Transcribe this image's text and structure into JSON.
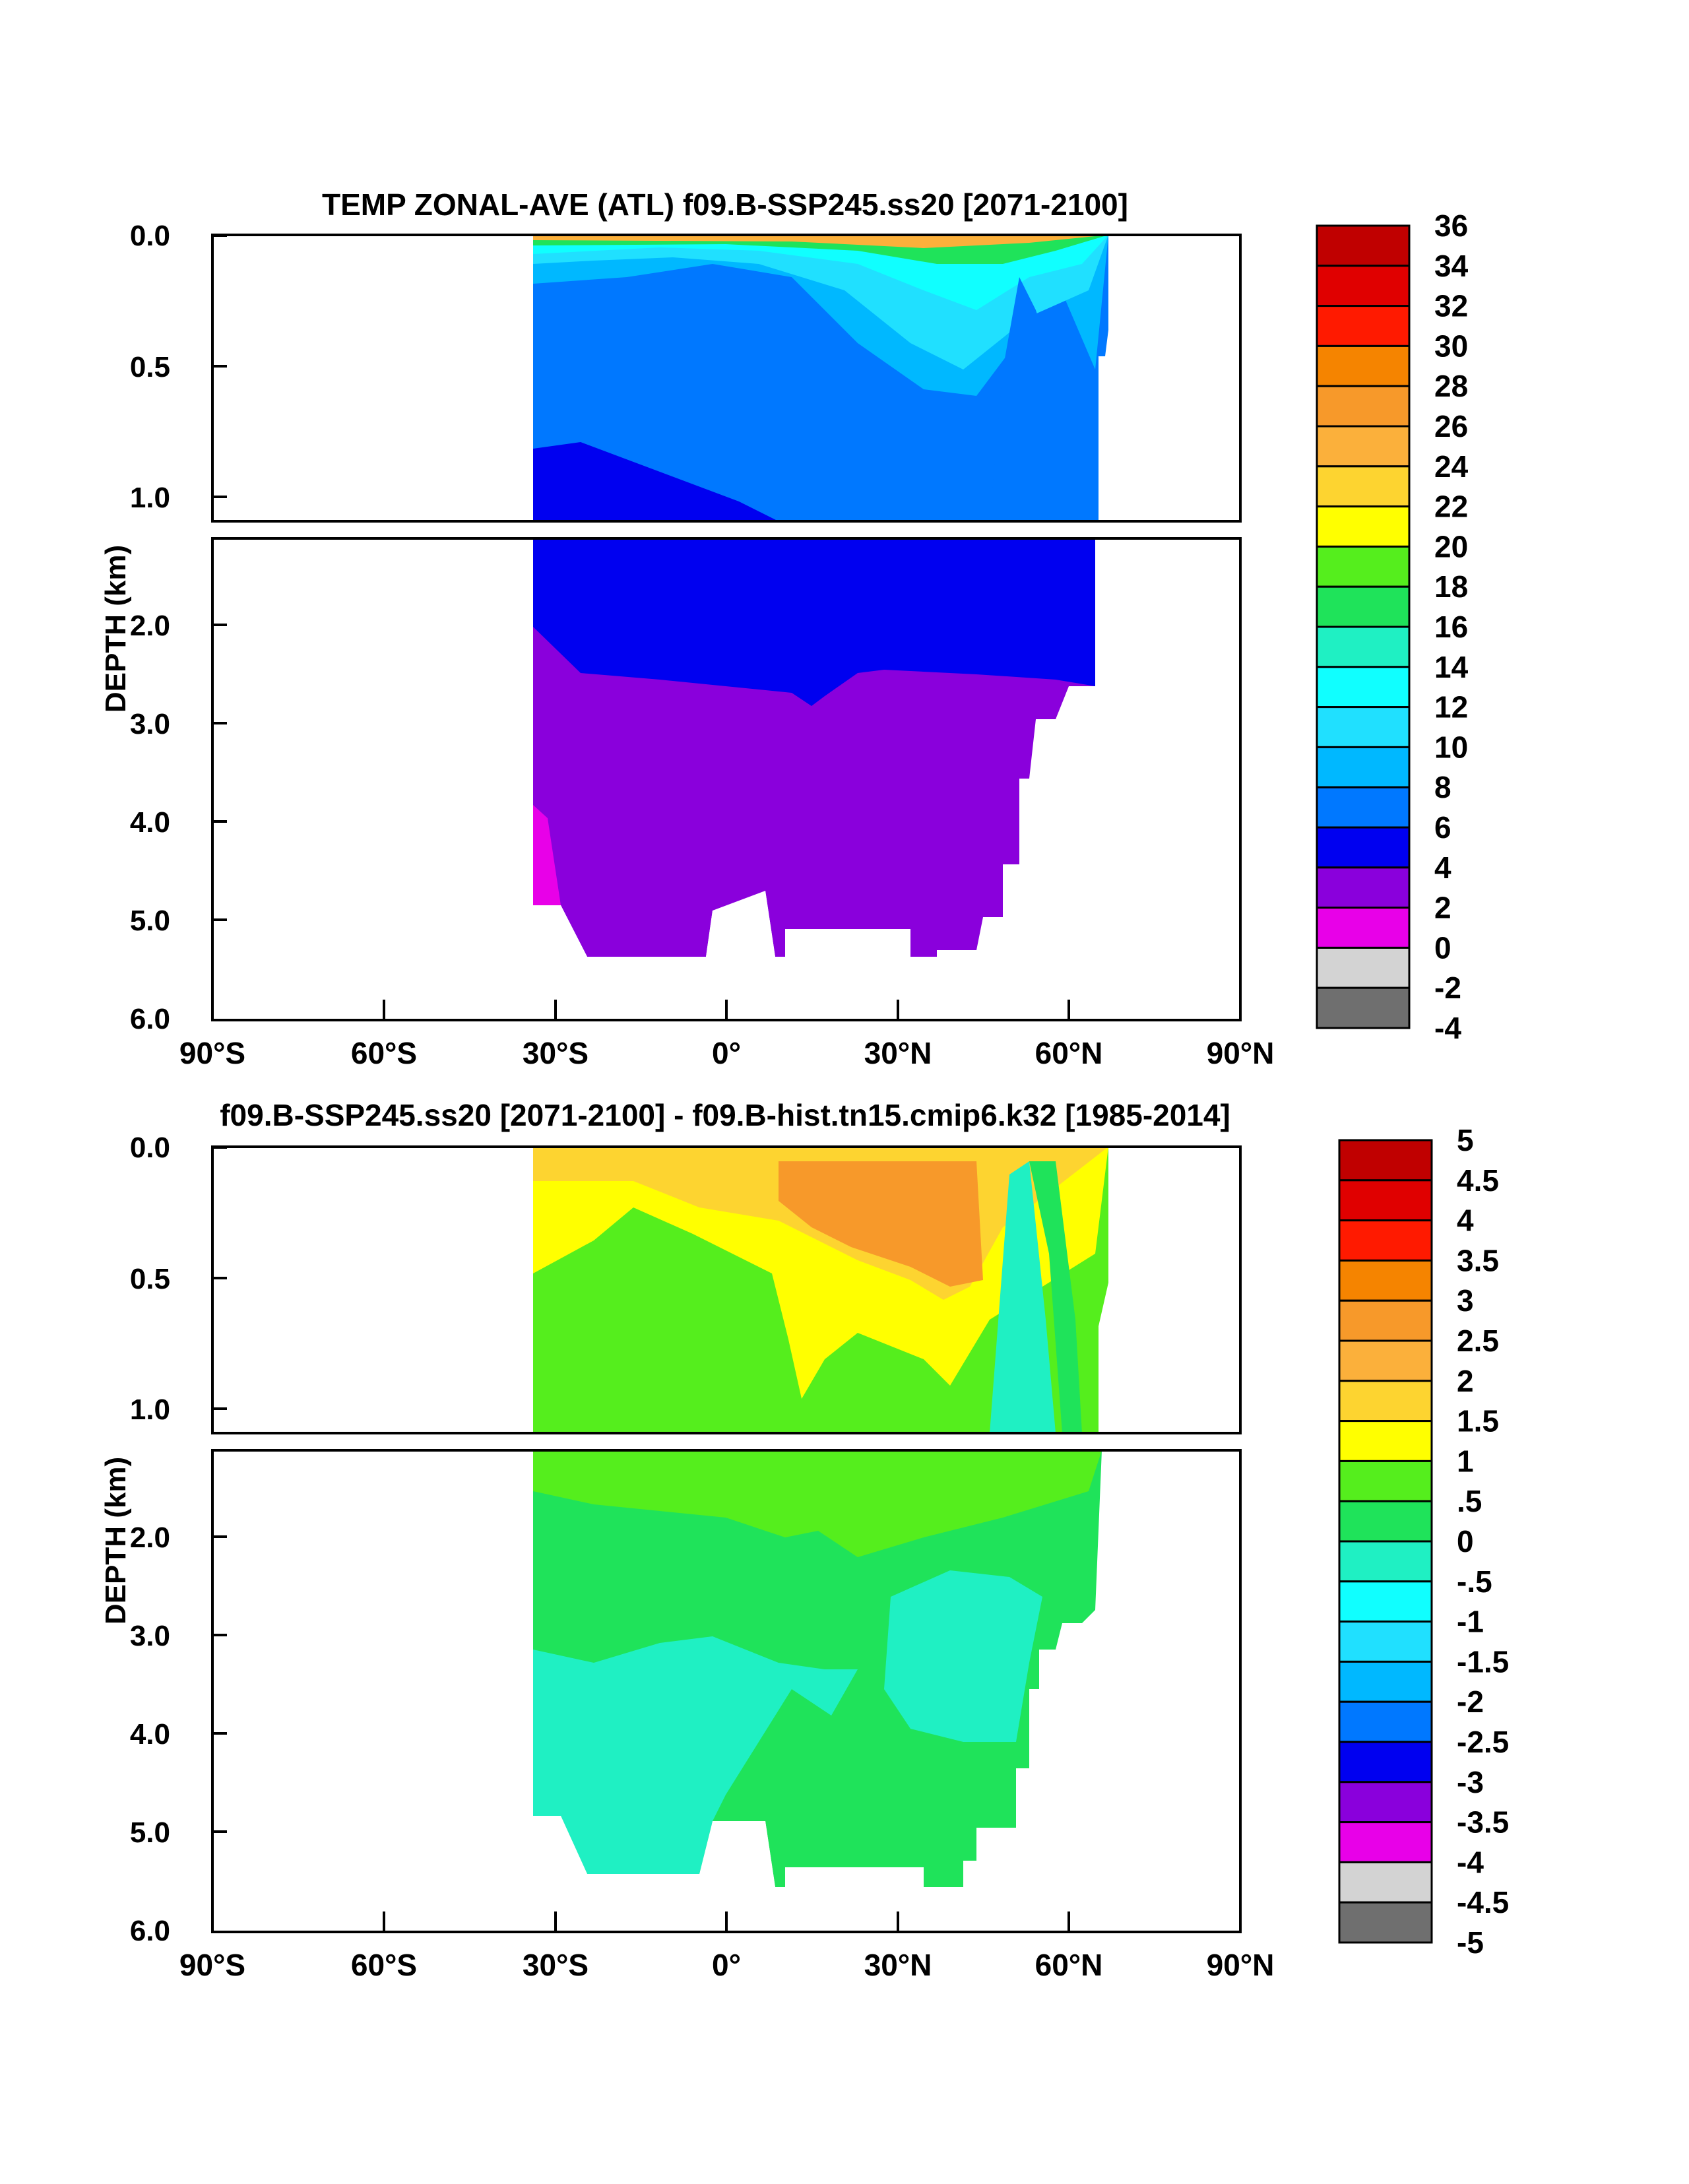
{
  "chart_data": [
    {
      "type": "heatmap",
      "title": "TEMP ZONAL-AVE (ATL) f09.B-SSP245.ss20 [2071-2100]",
      "xlabel": "",
      "ylabel": "DEPTH (km)",
      "x_ticks": [
        "90°S",
        "60°S",
        "30°S",
        "0°",
        "30°N",
        "60°N",
        "90°N"
      ],
      "x_tick_values": [
        -90,
        -60,
        -30,
        0,
        30,
        60,
        90
      ],
      "xlim": [
        -90,
        90
      ],
      "upper_panel": {
        "ylim": [
          0,
          1.1
        ],
        "y_ticks": [
          "0.0",
          "0.5",
          "1.0"
        ],
        "y_tick_values": [
          0.0,
          0.5,
          1.0
        ]
      },
      "lower_panel": {
        "ylim": [
          1.1,
          6.0
        ],
        "y_ticks": [
          "2.0",
          "3.0",
          "4.0",
          "5.0",
          "6.0"
        ],
        "y_tick_values": [
          2.0,
          3.0,
          4.0,
          5.0,
          6.0
        ]
      },
      "colorbar": {
        "labels": [
          "36",
          "34",
          "32",
          "30",
          "28",
          "26",
          "24",
          "22",
          "20",
          "18",
          "16",
          "14",
          "12",
          "10",
          "8",
          "6",
          "4",
          "2",
          "0",
          "-2",
          "-4"
        ],
        "colors": [
          "#c00000",
          "#e00000",
          "#ff1a00",
          "#f58400",
          "#f7992a",
          "#fbb03b",
          "#fdd430",
          "#ffff00",
          "#55ee1d",
          "#1fe35a",
          "#1ff0c3",
          "#10ffff",
          "#20e0ff",
          "#00b8ff",
          "#0078ff",
          "#0000f0",
          "#8a00dc",
          "#e800e8",
          "#d3d3d3",
          "#6f6f6f"
        ]
      }
    },
    {
      "type": "heatmap",
      "title": "f09.B-SSP245.ss20 [2071-2100] - f09.B-hist.tn15.cmip6.k32 [1985-2014]",
      "xlabel": "",
      "ylabel": "DEPTH (km)",
      "x_ticks": [
        "90°S",
        "60°S",
        "30°S",
        "0°",
        "30°N",
        "60°N",
        "90°N"
      ],
      "x_tick_values": [
        -90,
        -60,
        -30,
        0,
        30,
        60,
        90
      ],
      "xlim": [
        -90,
        90
      ],
      "upper_panel": {
        "ylim": [
          0,
          1.1
        ],
        "y_ticks": [
          "0.0",
          "0.5",
          "1.0"
        ],
        "y_tick_values": [
          0.0,
          0.5,
          1.0
        ]
      },
      "lower_panel": {
        "ylim": [
          1.1,
          6.0
        ],
        "y_ticks": [
          "2.0",
          "3.0",
          "4.0",
          "5.0",
          "6.0"
        ],
        "y_tick_values": [
          2.0,
          3.0,
          4.0,
          5.0,
          6.0
        ]
      },
      "colorbar": {
        "labels": [
          "5",
          "4.5",
          "4",
          "3.5",
          "3",
          "2.5",
          "2",
          "1.5",
          "1",
          ".5",
          "0",
          "-.5",
          "-1",
          "-1.5",
          "-2",
          "-2.5",
          "-3",
          "-3.5",
          "-4",
          "-4.5",
          "-5"
        ],
        "colors": [
          "#c00000",
          "#e00000",
          "#ff1a00",
          "#f58400",
          "#f7992a",
          "#fbb03b",
          "#fdd430",
          "#ffff00",
          "#55ee1d",
          "#1fe35a",
          "#1ff0c3",
          "#10ffff",
          "#20e0ff",
          "#00b8ff",
          "#0078ff",
          "#0000f0",
          "#8a00dc",
          "#e800e8",
          "#d3d3d3",
          "#6f6f6f"
        ]
      }
    }
  ]
}
